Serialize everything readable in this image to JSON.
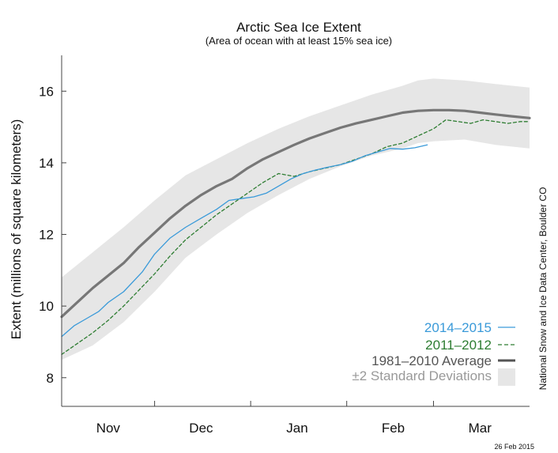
{
  "chart_data": {
    "type": "line",
    "title": "Arctic Sea Ice Extent",
    "subtitle": "(Area of ocean with at least 15% sea ice)",
    "ylabel": "Extent (millions of square kilometers)",
    "xlabel": "",
    "ylim": [
      7.2,
      17.0
    ],
    "xlim": [
      0,
      151
    ],
    "yticks": [
      8,
      10,
      12,
      14,
      16
    ],
    "xticks": [
      {
        "label": "Nov",
        "pos": 15
      },
      {
        "label": "Dec",
        "pos": 45
      },
      {
        "label": "Jan",
        "pos": 76
      },
      {
        "label": "Feb",
        "pos": 107
      },
      {
        "label": "Mar",
        "pos": 135
      }
    ],
    "month_boundaries": [
      30,
      61,
      92,
      120
    ],
    "grid": false,
    "series": [
      {
        "name": "2014–2015",
        "style": "solid",
        "color": "#3a9ad9",
        "points": [
          [
            0,
            9.15
          ],
          [
            4,
            9.45
          ],
          [
            8,
            9.65
          ],
          [
            12,
            9.85
          ],
          [
            15,
            10.1
          ],
          [
            20,
            10.4
          ],
          [
            26,
            10.95
          ],
          [
            30,
            11.45
          ],
          [
            35,
            11.9
          ],
          [
            40,
            12.2
          ],
          [
            45,
            12.45
          ],
          [
            50,
            12.7
          ],
          [
            54,
            12.95
          ],
          [
            58,
            13.0
          ],
          [
            62,
            13.05
          ],
          [
            66,
            13.15
          ],
          [
            70,
            13.35
          ],
          [
            74,
            13.55
          ],
          [
            78,
            13.7
          ],
          [
            82,
            13.8
          ],
          [
            86,
            13.88
          ],
          [
            90,
            13.95
          ],
          [
            94,
            14.05
          ],
          [
            98,
            14.2
          ],
          [
            102,
            14.3
          ],
          [
            106,
            14.4
          ],
          [
            110,
            14.38
          ],
          [
            114,
            14.42
          ],
          [
            118,
            14.5
          ]
        ]
      },
      {
        "name": "2011–2012",
        "style": "dashed",
        "color": "#2e7d32",
        "points": [
          [
            0,
            8.65
          ],
          [
            5,
            8.95
          ],
          [
            10,
            9.25
          ],
          [
            15,
            9.6
          ],
          [
            20,
            10.0
          ],
          [
            25,
            10.45
          ],
          [
            30,
            10.9
          ],
          [
            35,
            11.4
          ],
          [
            40,
            11.85
          ],
          [
            45,
            12.2
          ],
          [
            50,
            12.55
          ],
          [
            55,
            12.85
          ],
          [
            60,
            13.15
          ],
          [
            65,
            13.45
          ],
          [
            70,
            13.7
          ],
          [
            75,
            13.62
          ],
          [
            80,
            13.75
          ],
          [
            85,
            13.85
          ],
          [
            90,
            13.95
          ],
          [
            95,
            14.1
          ],
          [
            100,
            14.25
          ],
          [
            105,
            14.45
          ],
          [
            110,
            14.55
          ],
          [
            115,
            14.75
          ],
          [
            120,
            14.95
          ],
          [
            124,
            15.2
          ],
          [
            128,
            15.15
          ],
          [
            132,
            15.1
          ],
          [
            136,
            15.2
          ],
          [
            140,
            15.15
          ],
          [
            144,
            15.1
          ],
          [
            148,
            15.15
          ],
          [
            151,
            15.15
          ]
        ]
      },
      {
        "name": "1981–2010 Average",
        "style": "thick",
        "color": "#777777",
        "points": [
          [
            0,
            9.7
          ],
          [
            5,
            10.1
          ],
          [
            10,
            10.5
          ],
          [
            15,
            10.85
          ],
          [
            20,
            11.2
          ],
          [
            25,
            11.65
          ],
          [
            30,
            12.05
          ],
          [
            35,
            12.45
          ],
          [
            40,
            12.8
          ],
          [
            45,
            13.1
          ],
          [
            50,
            13.35
          ],
          [
            55,
            13.55
          ],
          [
            60,
            13.85
          ],
          [
            65,
            14.1
          ],
          [
            70,
            14.3
          ],
          [
            75,
            14.5
          ],
          [
            80,
            14.68
          ],
          [
            85,
            14.83
          ],
          [
            90,
            14.98
          ],
          [
            95,
            15.1
          ],
          [
            100,
            15.2
          ],
          [
            105,
            15.3
          ],
          [
            110,
            15.4
          ],
          [
            115,
            15.45
          ],
          [
            120,
            15.47
          ],
          [
            125,
            15.47
          ],
          [
            130,
            15.45
          ],
          [
            135,
            15.4
          ],
          [
            140,
            15.35
          ],
          [
            145,
            15.3
          ],
          [
            151,
            15.25
          ]
        ]
      }
    ],
    "band": {
      "name": "±2 Standard Deviations",
      "color": "#e6e6e6",
      "upper": [
        [
          0,
          10.8
        ],
        [
          10,
          11.5
        ],
        [
          20,
          12.2
        ],
        [
          30,
          12.95
        ],
        [
          40,
          13.65
        ],
        [
          50,
          14.1
        ],
        [
          60,
          14.55
        ],
        [
          70,
          14.95
        ],
        [
          80,
          15.3
        ],
        [
          90,
          15.6
        ],
        [
          100,
          15.9
        ],
        [
          110,
          16.15
        ],
        [
          115,
          16.3
        ],
        [
          120,
          16.35
        ],
        [
          130,
          16.3
        ],
        [
          140,
          16.2
        ],
        [
          151,
          16.1
        ]
      ],
      "lower": [
        [
          0,
          8.5
        ],
        [
          10,
          8.9
        ],
        [
          20,
          9.55
        ],
        [
          30,
          10.4
        ],
        [
          40,
          11.35
        ],
        [
          50,
          12.0
        ],
        [
          60,
          12.6
        ],
        [
          70,
          13.1
        ],
        [
          80,
          13.55
        ],
        [
          90,
          13.9
        ],
        [
          100,
          14.2
        ],
        [
          110,
          14.4
        ],
        [
          115,
          14.55
        ],
        [
          120,
          14.6
        ],
        [
          130,
          14.65
        ],
        [
          140,
          14.5
        ],
        [
          151,
          14.4
        ]
      ]
    },
    "legend": {
      "position": "bottom-right",
      "entries": [
        {
          "label": "2014–2015",
          "color": "#3a9ad9",
          "style": "solid"
        },
        {
          "label": "2011–2012",
          "color": "#2e7d32",
          "style": "dashed"
        },
        {
          "label": "1981–2010 Average",
          "color": "#555555",
          "style": "thick"
        },
        {
          "label": "±2 Standard Deviations",
          "color": "#999999",
          "style": "band"
        }
      ]
    }
  },
  "credit": "National Snow and Ice Data Center, Boulder CO",
  "datestamp": "26 Feb 2015"
}
